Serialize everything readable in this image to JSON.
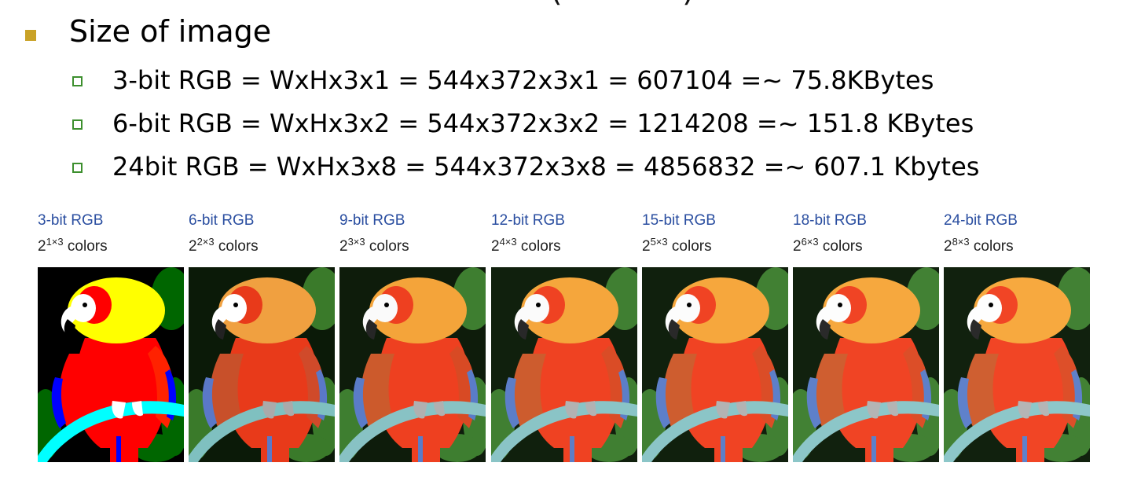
{
  "slide": {
    "bullet": {
      "heading": "Size of image"
    },
    "items": [
      {
        "text": "3-bit RGB = WxHx3x1 = 544x372x3x1  = 607104 =~ 75.8KBytes"
      },
      {
        "text": "6-bit RGB = WxHx3x2 = 544x372x3x2 = 1214208 =~ 151.8 KBytes"
      },
      {
        "text": "24bit RGB = WxHx3x8 = 544x372x3x8 = 4856832 =~ 607.1 Kbytes"
      }
    ],
    "colors": {
      "main_bullet": "#c9a227",
      "sub_bullet": "#3d8f2e",
      "panel_label": "#2a4ea0"
    }
  },
  "gallery": [
    {
      "label": "3-bit RGB",
      "base": "2",
      "exp": "1×3",
      "suffix": "colors",
      "quantization": "3-bit"
    },
    {
      "label": "6-bit RGB",
      "base": "2",
      "exp": "2×3",
      "suffix": "colors",
      "quantization": "6-bit"
    },
    {
      "label": "9-bit RGB",
      "base": "2",
      "exp": "3×3",
      "suffix": "colors",
      "quantization": "9-bit"
    },
    {
      "label": "12-bit RGB",
      "base": "2",
      "exp": "4×3",
      "suffix": "colors",
      "quantization": "12-bit"
    },
    {
      "label": "15-bit RGB",
      "base": "2",
      "exp": "5×3",
      "suffix": "colors",
      "quantization": "15-bit"
    },
    {
      "label": "18-bit RGB",
      "base": "2",
      "exp": "6×3",
      "suffix": "colors",
      "quantization": "18-bit"
    },
    {
      "label": "24-bit RGB",
      "base": "2",
      "exp": "8×3",
      "suffix": "colors",
      "quantization": "24-bit"
    }
  ]
}
